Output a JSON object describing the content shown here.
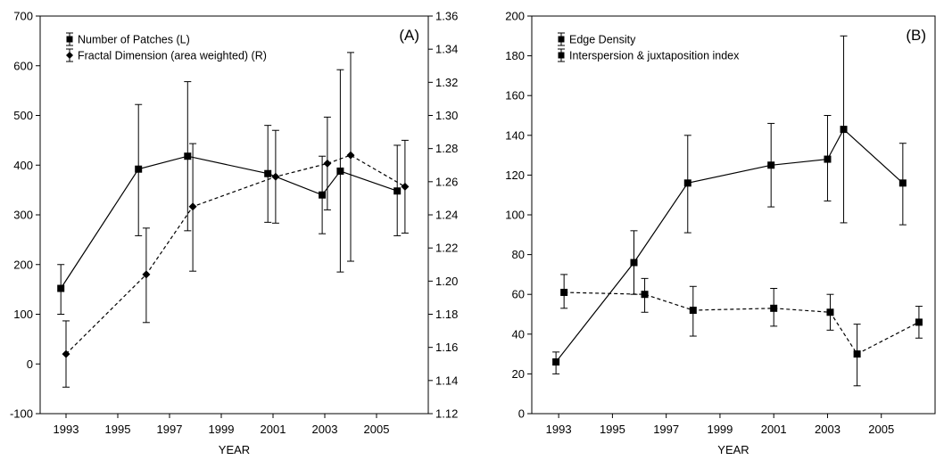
{
  "chart_data": [
    {
      "type": "line",
      "panel_label": "(A)",
      "xlabel": "YEAR",
      "x_ticks": [
        "1993",
        "1995",
        "1997",
        "1999",
        "2001",
        "2003",
        "2005"
      ],
      "xlim": [
        1992,
        2007
      ],
      "ylim_left": [
        -100,
        700
      ],
      "y_ticks_left": [
        "700",
        "600",
        "500",
        "400",
        "300",
        "200",
        "100",
        "0",
        "-100"
      ],
      "ylim_right": [
        1.12,
        1.36
      ],
      "y_ticks_right": [
        "1.36",
        "1.34",
        "1.32",
        "1.30",
        "1.28",
        "1.26",
        "1.24",
        "1.22",
        "1.20",
        "1.18",
        "1.16",
        "1.14",
        "1.12"
      ],
      "legend_position": "top-left",
      "series": [
        {
          "name": "Number of Patches (L)",
          "axis": "left",
          "style": "solid",
          "marker": "square",
          "points": [
            {
              "x": 1992.8,
              "y": 152,
              "lo": 100,
              "hi": 200
            },
            {
              "x": 1995.8,
              "y": 392,
              "lo": 258,
              "hi": 522
            },
            {
              "x": 1997.7,
              "y": 418,
              "lo": 268,
              "hi": 568
            },
            {
              "x": 2000.8,
              "y": 383,
              "lo": 285,
              "hi": 480
            },
            {
              "x": 2002.9,
              "y": 340,
              "lo": 262,
              "hi": 418
            },
            {
              "x": 2003.6,
              "y": 388,
              "lo": 185,
              "hi": 592
            },
            {
              "x": 2005.8,
              "y": 348,
              "lo": 258,
              "hi": 440
            }
          ]
        },
        {
          "name": "Fractal Dimension (area weighted) (R)",
          "axis": "right",
          "style": "dashed",
          "marker": "diamond",
          "points": [
            {
              "x": 1993.0,
              "y": 1.156,
              "lo": 1.136,
              "hi": 1.176
            },
            {
              "x": 1996.1,
              "y": 1.204,
              "lo": 1.175,
              "hi": 1.232
            },
            {
              "x": 1997.9,
              "y": 1.245,
              "lo": 1.206,
              "hi": 1.283
            },
            {
              "x": 2001.1,
              "y": 1.263,
              "lo": 1.235,
              "hi": 1.291
            },
            {
              "x": 2003.1,
              "y": 1.271,
              "lo": 1.243,
              "hi": 1.299
            },
            {
              "x": 2004.0,
              "y": 1.276,
              "lo": 1.212,
              "hi": 1.338
            },
            {
              "x": 2006.1,
              "y": 1.257,
              "lo": 1.229,
              "hi": 1.285
            }
          ]
        }
      ]
    },
    {
      "type": "line",
      "panel_label": "(B)",
      "xlabel": "YEAR",
      "x_ticks": [
        "1993",
        "1995",
        "1997",
        "1999",
        "2001",
        "2003",
        "2005"
      ],
      "xlim": [
        1992,
        2007
      ],
      "ylim_left": [
        0,
        200
      ],
      "y_ticks_left": [
        "200",
        "180",
        "160",
        "140",
        "120",
        "100",
        "80",
        "60",
        "40",
        "20",
        "0"
      ],
      "legend_position": "top-left",
      "series": [
        {
          "name": "Edge Density",
          "axis": "left",
          "style": "solid",
          "marker": "square",
          "points": [
            {
              "x": 1992.9,
              "y": 26,
              "lo": 20,
              "hi": 31
            },
            {
              "x": 1995.8,
              "y": 76,
              "lo": 60,
              "hi": 92
            },
            {
              "x": 1997.8,
              "y": 116,
              "lo": 91,
              "hi": 140
            },
            {
              "x": 2000.9,
              "y": 125,
              "lo": 104,
              "hi": 146
            },
            {
              "x": 2003.0,
              "y": 128,
              "lo": 107,
              "hi": 150
            },
            {
              "x": 2003.6,
              "y": 143,
              "lo": 96,
              "hi": 190
            },
            {
              "x": 2005.8,
              "y": 116,
              "lo": 95,
              "hi": 136
            }
          ]
        },
        {
          "name": "Interspersion & juxtaposition index",
          "axis": "left",
          "style": "dashed",
          "marker": "square",
          "points": [
            {
              "x": 1993.2,
              "y": 61,
              "lo": 53,
              "hi": 70
            },
            {
              "x": 1996.2,
              "y": 60,
              "lo": 51,
              "hi": 68
            },
            {
              "x": 1998.0,
              "y": 52,
              "lo": 39,
              "hi": 64
            },
            {
              "x": 2001.0,
              "y": 53,
              "lo": 44,
              "hi": 63
            },
            {
              "x": 2003.1,
              "y": 51,
              "lo": 42,
              "hi": 60
            },
            {
              "x": 2004.1,
              "y": 30,
              "lo": 14,
              "hi": 45
            },
            {
              "x": 2006.4,
              "y": 46,
              "lo": 38,
              "hi": 54
            }
          ]
        }
      ]
    }
  ]
}
